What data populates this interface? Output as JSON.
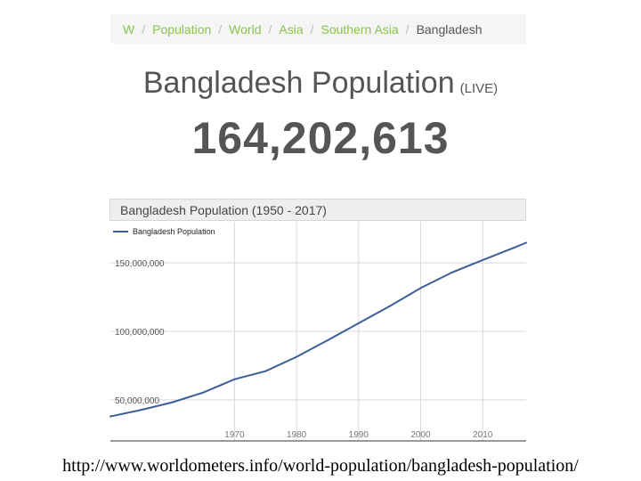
{
  "breadcrumb": {
    "items": [
      "W",
      "Population",
      "World",
      "Asia",
      "Southern Asia"
    ],
    "current": "Bangladesh",
    "separator": "/"
  },
  "header": {
    "title": "Bangladesh Population",
    "live_tag": "(LIVE)",
    "counter": "164,202,613"
  },
  "colors": {
    "breadcrumb_link": "#8bc34a",
    "series_line": "#3b5f98",
    "grid": "#d9d9d9"
  },
  "chart_data": {
    "type": "line",
    "title": "Bangladesh Population (1950 - 2017)",
    "legend": "top-left",
    "grid": true,
    "series": [
      {
        "name": "Bangladesh Population",
        "x": [
          1950,
          1955,
          1960,
          1965,
          1970,
          1975,
          1980,
          1985,
          1990,
          1995,
          2000,
          2005,
          2010,
          2015,
          2017
        ],
        "y": [
          37900000,
          42700000,
          48200000,
          55400000,
          65000000,
          70900000,
          81400000,
          93500000,
          105900000,
          118400000,
          131600000,
          142900000,
          152100000,
          161000000,
          164700000
        ]
      }
    ],
    "xlim": [
      1950,
      2017
    ],
    "ylim": [
      20000000,
      180000000
    ],
    "x_ticks": [
      1970,
      1980,
      1990,
      2000,
      2010
    ],
    "x_tick_labels": [
      "1970",
      "1980",
      "1990",
      "2000",
      "2010"
    ],
    "y_ticks": [
      50000000,
      100000000,
      150000000
    ],
    "y_tick_labels": [
      "50,000,000",
      "100,000,000",
      "150,000,000"
    ]
  },
  "footer": {
    "url": "http://www.worldometers.info/world-population/bangladesh-population/"
  }
}
